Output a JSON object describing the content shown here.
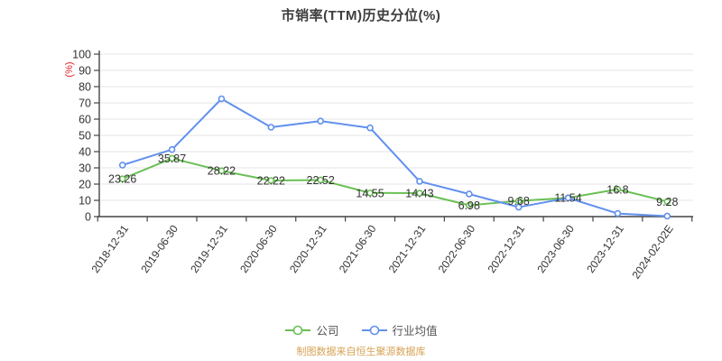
{
  "source_note": "制图数据来自恒生聚源数据库",
  "colors": {
    "company": "#6abf55",
    "industry": "#6190ee",
    "title_text": "#3d3d3d",
    "axis_line": "#444444",
    "axis_text": "#333333",
    "data_label_text": "#333333",
    "gridline": "#e5e5e5",
    "ylabel_red": "#e62222",
    "source_orange": "#d7a254",
    "legend_text": "#555555"
  },
  "chart_data": {
    "type": "line",
    "title": "市销率(TTM)历史分位(%)",
    "ylabel": "(%)",
    "xlabel": "",
    "ylim": [
      0,
      100
    ],
    "ytick_step": 10,
    "grid": true,
    "x": [
      "2018-12-31",
      "2019-06-30",
      "2019-12-31",
      "2020-06-30",
      "2020-12-31",
      "2021-06-30",
      "2021-12-31",
      "2022-06-30",
      "2022-12-31",
      "2023-06-30",
      "2023-12-31",
      "2024-02-02E"
    ],
    "series": [
      {
        "name": "公司",
        "key": "company",
        "values": [
          23.26,
          35.87,
          28.22,
          22.22,
          22.52,
          14.55,
          14.43,
          6.98,
          9.68,
          11.54,
          16.8,
          9.28
        ],
        "data_labels": [
          "23.26",
          "35.87",
          "28.22",
          "22.22",
          "22.52",
          "14.55",
          "14.43",
          "6.98",
          "9.68",
          "11.54",
          "16.8",
          "9.28"
        ]
      },
      {
        "name": "行业均值",
        "key": "industry",
        "values": [
          31.7,
          41.3,
          72.5,
          55.0,
          58.8,
          54.6,
          21.7,
          13.9,
          5.8,
          11.5,
          1.9,
          0.3
        ],
        "data_labels": null
      }
    ],
    "legend": {
      "position": "bottom",
      "items": [
        {
          "key": "company",
          "label": "公司"
        },
        {
          "key": "industry",
          "label": "行业均值"
        }
      ]
    }
  }
}
